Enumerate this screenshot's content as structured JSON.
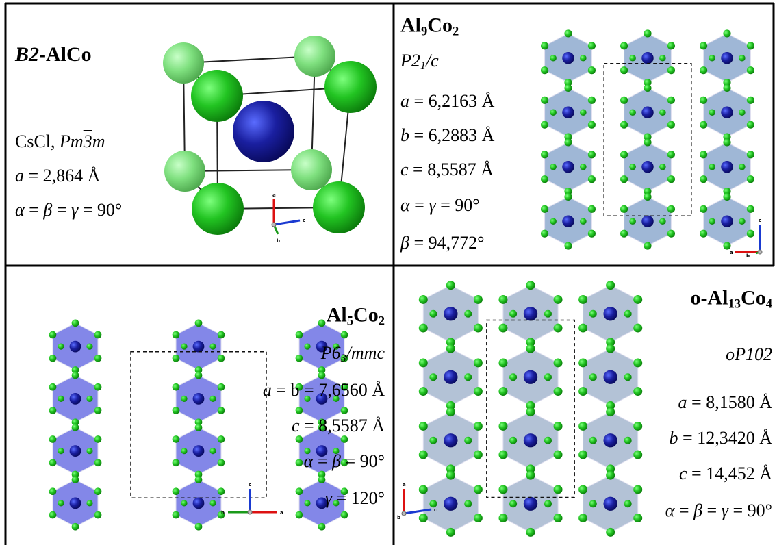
{
  "cells": [
    {
      "title": [
        {
          "text": "B2",
          "italic": true
        },
        {
          "text": "-AlCo"
        }
      ],
      "lines": [
        [
          {
            "text": "CsCl, "
          },
          {
            "text": "Pm",
            "italic": true
          },
          {
            "text": "3",
            "italic": true,
            "overline": true
          },
          {
            "text": "m",
            "italic": true
          }
        ],
        [
          {
            "text": "a",
            "italic": true
          },
          {
            "text": " = 2,864 Å"
          }
        ],
        [
          {
            "text": "α",
            "italic": true
          },
          {
            "text": " = "
          },
          {
            "text": "β",
            "italic": true
          },
          {
            "text": " = "
          },
          {
            "text": "γ",
            "italic": true
          },
          {
            "text": " = 90°"
          }
        ]
      ],
      "axes": [
        "a",
        "c",
        "b"
      ]
    },
    {
      "title": [
        {
          "text": "Al"
        },
        {
          "text": "9",
          "sub": true
        },
        {
          "text": "Co"
        },
        {
          "text": "2",
          "sub": true
        }
      ],
      "lines": [
        [
          {
            "text": "P2",
            "italic": true
          },
          {
            "text": "1",
            "italic": true,
            "sub": true
          },
          {
            "text": "/c",
            "italic": true
          }
        ],
        [
          {
            "text": "a",
            "italic": true
          },
          {
            "text": " = 6,2163 Å"
          }
        ],
        [
          {
            "text": "b",
            "italic": true
          },
          {
            "text": " = 6,2883 Å"
          }
        ],
        [
          {
            "text": "c",
            "italic": true
          },
          {
            "text": " = 8,5587 Å"
          }
        ],
        [
          {
            "text": "α",
            "italic": true
          },
          {
            "text": " = "
          },
          {
            "text": "γ",
            "italic": true
          },
          {
            "text": " = 90°"
          }
        ],
        [
          {
            "text": "β",
            "italic": true
          },
          {
            "text": " = 94,772°"
          }
        ]
      ],
      "axes": [
        "c",
        "a",
        "b"
      ]
    },
    {
      "title": [
        {
          "text": "Al"
        },
        {
          "text": "5",
          "sub": true
        },
        {
          "text": "Co"
        },
        {
          "text": "2",
          "sub": true
        }
      ],
      "lines": [
        [
          {
            "text": "P6",
            "italic": true
          },
          {
            "text": "3",
            "italic": true,
            "sub": true
          },
          {
            "text": "/mmc",
            "italic": true
          }
        ],
        [
          {
            "text": "a",
            "italic": true
          },
          {
            "text": " = b = 7,6560 Å"
          }
        ],
        [
          {
            "text": "c",
            "italic": true
          },
          {
            "text": " = 8,5587 Å"
          }
        ],
        [
          {
            "text": "α",
            "italic": true
          },
          {
            "text": " = "
          },
          {
            "text": "β",
            "italic": true
          },
          {
            "text": " = 90°"
          }
        ],
        [
          {
            "text": "γ",
            "italic": true
          },
          {
            "text": " = 120°"
          }
        ]
      ],
      "axes": [
        "c",
        "b",
        "a"
      ]
    },
    {
      "title": [
        {
          "text": "o-Al"
        },
        {
          "text": "13",
          "sub": true
        },
        {
          "text": "Co"
        },
        {
          "text": "4",
          "sub": true
        }
      ],
      "lines": [
        [
          {
            "text": "oP102",
            "italic": true
          }
        ],
        [
          {
            "text": "a",
            "italic": true
          },
          {
            "text": " = 8,1580 Å"
          }
        ],
        [
          {
            "text": "b",
            "italic": true
          },
          {
            "text": " = 12,3420 Å"
          }
        ],
        [
          {
            "text": "c",
            "italic": true
          },
          {
            "text": " = 14,452 Å"
          }
        ],
        [
          {
            "text": "α",
            "italic": true
          },
          {
            "text": " = "
          },
          {
            "text": "β",
            "italic": true
          },
          {
            "text": " = "
          },
          {
            "text": "γ",
            "italic": true
          },
          {
            "text": " = 90°"
          }
        ]
      ],
      "axes": [
        "a",
        "b",
        "c"
      ]
    }
  ]
}
